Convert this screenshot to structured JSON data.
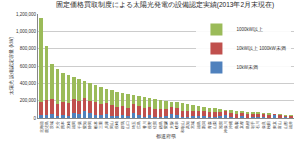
{
  "chart_data": {
    "type": "bar",
    "title": "固定価格買取制度による太陽光発電の設備認定実績(2013年2月末現在)",
    "x_label": "都道府県",
    "y_label": "太陽光 設備認定容量 (kW)",
    "categories": [
      "北海道",
      "鹿児島",
      "茨城",
      "大分",
      "熊本",
      "宮崎",
      "福岡",
      "千葉",
      "愛知",
      "静岡",
      "栃木",
      "三重",
      "兵庫",
      "岡山",
      "長崎",
      "群馬",
      "山口",
      "埼玉",
      "広島",
      "香川",
      "長野",
      "佐賀",
      "徳島",
      "愛媛",
      "大阪",
      "岐阜",
      "和歌山",
      "高知",
      "宮城",
      "福島",
      "新潟",
      "青森",
      "山梨",
      "滋賀",
      "神奈川",
      "沖縄",
      "鳥取",
      "京都",
      "島根",
      "岩手",
      "石川",
      "奈良",
      "秋田",
      "東京",
      "富山",
      "山形",
      "福井"
    ],
    "series": [
      {
        "name": "10kW未満",
        "color": "#4f81bd",
        "values": [
          40000,
          30000,
          50000,
          20000,
          30000,
          25000,
          60000,
          50000,
          80000,
          60000,
          35000,
          30000,
          50000,
          25000,
          20000,
          30000,
          20000,
          60000,
          35000,
          15000,
          35000,
          15000,
          10000,
          20000,
          50000,
          30000,
          10000,
          10000,
          25000,
          20000,
          20000,
          10000,
          15000,
          20000,
          40000,
          10000,
          5000,
          20000,
          5000,
          10000,
          10000,
          15000,
          5000,
          30000,
          5000,
          8000,
          5000
        ]
      },
      {
        "name": "10kW以上 1000kW未満",
        "color": "#c0504d",
        "values": [
          150000,
          180000,
          170000,
          140000,
          160000,
          150000,
          160000,
          150000,
          150000,
          140000,
          150000,
          130000,
          120000,
          120000,
          110000,
          110000,
          100000,
          100000,
          100000,
          100000,
          90000,
          90000,
          90000,
          80000,
          80000,
          80000,
          70000,
          70000,
          60000,
          60000,
          60000,
          60000,
          50000,
          50000,
          45000,
          50000,
          40000,
          40000,
          40000,
          35000,
          35000,
          30000,
          30000,
          15000,
          25000,
          20000,
          20000
        ]
      },
      {
        "name": "1000kW以上",
        "color": "#9bbb59",
        "values": [
          960000,
          620000,
          400000,
          400000,
          330000,
          325000,
          250000,
          250000,
          200000,
          200000,
          195000,
          200000,
          170000,
          175000,
          170000,
          150000,
          160000,
          110000,
          120000,
          125000,
          105000,
          115000,
          110000,
          100000,
          60000,
          70000,
          90000,
          80000,
          65000,
          60000,
          50000,
          50000,
          45000,
          30000,
          10000,
          30000,
          40000,
          20000,
          30000,
          25000,
          20000,
          15000,
          20000,
          5000,
          15000,
          12000,
          10000
        ]
      }
    ],
    "stacked": true,
    "ylim": [
      0,
      1200000
    ],
    "yticks": [
      0,
      {
        "value": 200000,
        "label": "200,000"
      },
      {
        "value": 400000,
        "label": "400,000"
      },
      {
        "value": 600000,
        "label": "600,000"
      },
      {
        "value": 800000,
        "label": "800,000"
      },
      {
        "value": 1000000,
        "label": "1,000,000"
      },
      {
        "value": 1200000,
        "label": "1,200,000"
      }
    ],
    "grid": true,
    "legend": "upper right"
  }
}
